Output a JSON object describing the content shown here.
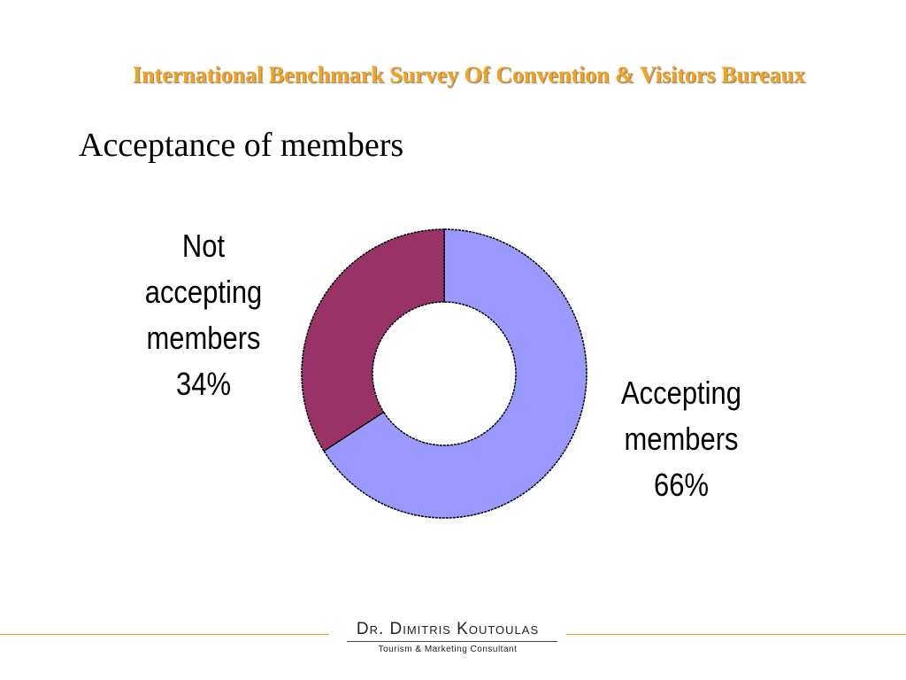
{
  "header": {
    "title": "International Benchmark Survey Of Convention & Visitors Bureaux",
    "title_color": "#F7A21B"
  },
  "slide": {
    "title": "Acceptance of members"
  },
  "chart_data": {
    "type": "pie",
    "style": "donut",
    "title": "",
    "slices": [
      {
        "label": "Accepting members",
        "value": 66,
        "value_label": "66%",
        "label_lines": [
          "Accepting",
          "members",
          "66%"
        ],
        "color": "#9999FF"
      },
      {
        "label": "Not accepting members",
        "value": 34,
        "value_label": "34%",
        "label_lines": [
          "Not",
          "accepting",
          "members",
          "34%"
        ],
        "color": "#993366"
      }
    ],
    "legend": "none"
  },
  "footer": {
    "name": "Dr. Dimitris Koutoulas",
    "subtitle": "Tourism & Marketing Consultant",
    "line_color": "#F7A21B"
  }
}
